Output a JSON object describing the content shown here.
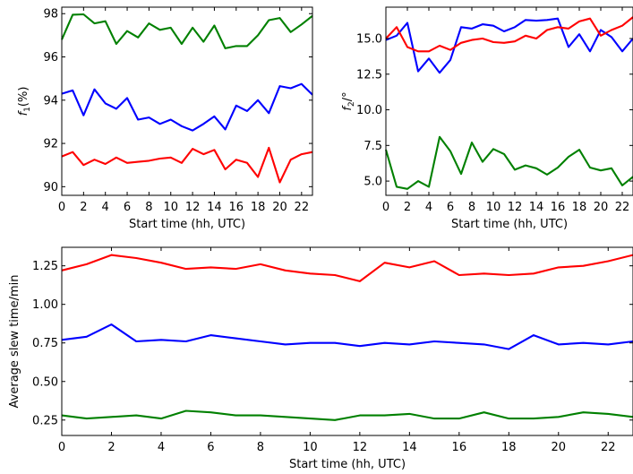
{
  "chart_data": [
    {
      "type": "line",
      "title": "",
      "xlabel": "Start time (hh, UTC)",
      "ylabel": "f1 (%)",
      "ylabel_main": "f",
      "ylabel_sub": "1",
      "ylabel_unit": "(%)",
      "xlim": [
        0,
        23
      ],
      "ylim": [
        89.6,
        98.3
      ],
      "xticks": [
        0,
        2,
        4,
        6,
        8,
        10,
        12,
        14,
        16,
        18,
        20,
        22
      ],
      "yticks": [
        90,
        92,
        94,
        96,
        98
      ],
      "ytick_labels": [
        "90",
        "92",
        "94",
        "96",
        "98"
      ],
      "x": [
        0,
        1,
        2,
        3,
        4,
        5,
        6,
        7,
        8,
        9,
        10,
        11,
        12,
        13,
        14,
        15,
        16,
        17,
        18,
        19,
        20,
        21,
        22,
        23
      ],
      "series": [
        {
          "color": "#008000",
          "values": [
            96.8,
            97.95,
            97.97,
            97.55,
            97.65,
            96.6,
            97.2,
            96.9,
            97.55,
            97.25,
            97.35,
            96.6,
            97.35,
            96.7,
            97.45,
            96.4,
            96.5,
            96.5,
            97.0,
            97.7,
            97.8,
            97.15,
            97.5,
            97.9
          ]
        },
        {
          "color": "#0000ff",
          "values": [
            94.3,
            94.45,
            93.3,
            94.5,
            93.85,
            93.6,
            94.1,
            93.1,
            93.2,
            92.9,
            93.1,
            92.8,
            92.6,
            92.9,
            93.25,
            92.65,
            93.75,
            93.5,
            94.0,
            93.4,
            94.65,
            94.55,
            94.75,
            94.25
          ]
        },
        {
          "color": "#ff0000",
          "values": [
            91.4,
            91.6,
            91.0,
            91.25,
            91.05,
            91.35,
            91.1,
            91.15,
            91.2,
            91.3,
            91.35,
            91.1,
            91.75,
            91.5,
            91.7,
            90.8,
            91.25,
            91.1,
            90.45,
            91.8,
            90.2,
            91.25,
            91.5,
            91.6
          ]
        }
      ]
    },
    {
      "type": "line",
      "title": "",
      "xlabel": "Start time (hh, UTC)",
      "ylabel": "f2/°",
      "ylabel_main": "f",
      "ylabel_sub": "2",
      "ylabel_unit": "/°",
      "xlim": [
        0,
        23
      ],
      "ylim": [
        4.0,
        17.2
      ],
      "xticks": [
        0,
        2,
        4,
        6,
        8,
        10,
        12,
        14,
        16,
        18,
        20,
        22
      ],
      "yticks": [
        5.0,
        7.5,
        10.0,
        12.5,
        15.0
      ],
      "ytick_labels": [
        "5.0",
        "7.5",
        "10.0",
        "12.5",
        "15.0"
      ],
      "x": [
        0,
        1,
        2,
        3,
        4,
        5,
        6,
        7,
        8,
        9,
        10,
        11,
        12,
        13,
        14,
        15,
        16,
        17,
        18,
        19,
        20,
        21,
        22,
        23
      ],
      "series": [
        {
          "color": "#0000ff",
          "values": [
            14.9,
            15.2,
            16.1,
            12.7,
            13.6,
            12.6,
            13.5,
            15.8,
            15.7,
            16.0,
            15.9,
            15.5,
            15.8,
            16.3,
            16.25,
            16.3,
            16.4,
            14.4,
            15.3,
            14.1,
            15.6,
            15.1,
            14.1,
            15.0
          ]
        },
        {
          "color": "#ff0000",
          "values": [
            15.0,
            15.8,
            14.4,
            14.1,
            14.1,
            14.5,
            14.2,
            14.7,
            14.9,
            15.0,
            14.75,
            14.7,
            14.8,
            15.2,
            15.0,
            15.6,
            15.8,
            15.7,
            16.2,
            16.4,
            15.2,
            15.6,
            15.9,
            16.5
          ]
        },
        {
          "color": "#008000",
          "values": [
            7.2,
            4.6,
            4.45,
            5.0,
            4.6,
            8.1,
            7.1,
            5.5,
            7.7,
            6.35,
            7.25,
            6.9,
            5.8,
            6.1,
            5.9,
            5.45,
            5.95,
            6.7,
            7.2,
            5.95,
            5.75,
            5.9,
            4.7,
            5.3
          ]
        }
      ]
    },
    {
      "type": "line",
      "title": "",
      "xlabel": "Start time (hh, UTC)",
      "ylabel": "Average slew time/min",
      "xlim": [
        0,
        23
      ],
      "ylim": [
        0.15,
        1.37
      ],
      "xticks": [
        0,
        2,
        4,
        6,
        8,
        10,
        12,
        14,
        16,
        18,
        20,
        22
      ],
      "yticks": [
        0.25,
        0.5,
        0.75,
        1.0,
        1.25
      ],
      "ytick_labels": [
        "0.25",
        "0.50",
        "0.75",
        "1.00",
        "1.25"
      ],
      "x": [
        0,
        1,
        2,
        3,
        4,
        5,
        6,
        7,
        8,
        9,
        10,
        11,
        12,
        13,
        14,
        15,
        16,
        17,
        18,
        19,
        20,
        21,
        22,
        23
      ],
      "series": [
        {
          "color": "#ff0000",
          "values": [
            1.22,
            1.26,
            1.32,
            1.3,
            1.27,
            1.23,
            1.24,
            1.23,
            1.26,
            1.22,
            1.2,
            1.19,
            1.15,
            1.27,
            1.24,
            1.28,
            1.19,
            1.2,
            1.19,
            1.2,
            1.24,
            1.25,
            1.28,
            1.32
          ]
        },
        {
          "color": "#0000ff",
          "values": [
            0.77,
            0.79,
            0.87,
            0.76,
            0.77,
            0.76,
            0.8,
            0.78,
            0.76,
            0.74,
            0.75,
            0.75,
            0.73,
            0.75,
            0.74,
            0.76,
            0.75,
            0.74,
            0.71,
            0.8,
            0.74,
            0.75,
            0.74,
            0.76
          ]
        },
        {
          "color": "#008000",
          "values": [
            0.28,
            0.26,
            0.27,
            0.28,
            0.26,
            0.31,
            0.3,
            0.28,
            0.28,
            0.27,
            0.26,
            0.25,
            0.28,
            0.28,
            0.29,
            0.26,
            0.26,
            0.3,
            0.26,
            0.26,
            0.27,
            0.3,
            0.29,
            0.27
          ]
        }
      ]
    }
  ]
}
